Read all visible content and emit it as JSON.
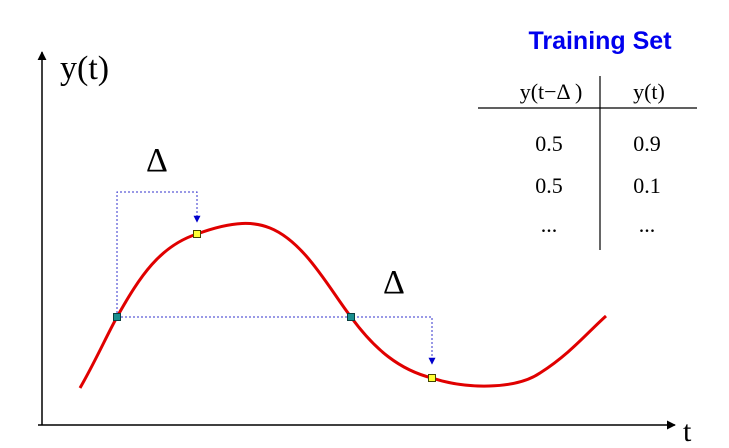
{
  "axes": {
    "y_label": "y(t)",
    "x_label": "t"
  },
  "delta_symbol": "Δ",
  "training_set": {
    "title": "Training Set",
    "headers": [
      "y(t−Δ )",
      "y(t)"
    ],
    "rows": [
      [
        "0.5",
        "0.9"
      ],
      [
        "0.5",
        "0.1"
      ],
      [
        "...",
        "..."
      ]
    ]
  },
  "colors": {
    "curve": "#e00000",
    "title": "#0000ee",
    "dotted_lines": "#3333cc",
    "sample_point": "#1a8f8f",
    "shifted_point": "#ffff33"
  }
}
